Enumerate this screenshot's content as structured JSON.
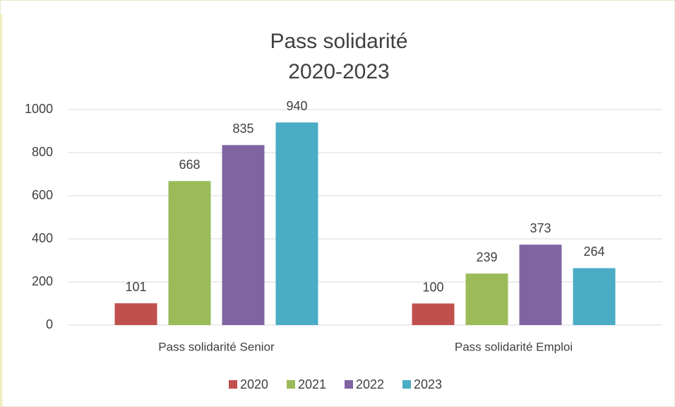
{
  "chart_data": {
    "type": "bar",
    "title": [
      "Pass solidarité",
      "2020-2023"
    ],
    "categories": [
      "Pass solidarité Senior",
      "Pass solidarité Emploi"
    ],
    "series": [
      {
        "name": "2020",
        "color": "#c0504d",
        "values": [
          101,
          100
        ]
      },
      {
        "name": "2021",
        "color": "#9bbb59",
        "values": [
          668,
          239
        ]
      },
      {
        "name": "2022",
        "color": "#8064a2",
        "values": [
          835,
          373
        ]
      },
      {
        "name": "2023",
        "color": "#4bacc6",
        "values": [
          940,
          264
        ]
      }
    ],
    "ylim": [
      0,
      1000
    ],
    "yticks": [
      0,
      200,
      400,
      600,
      800,
      1000
    ],
    "grid": true,
    "legend": "bottom"
  }
}
